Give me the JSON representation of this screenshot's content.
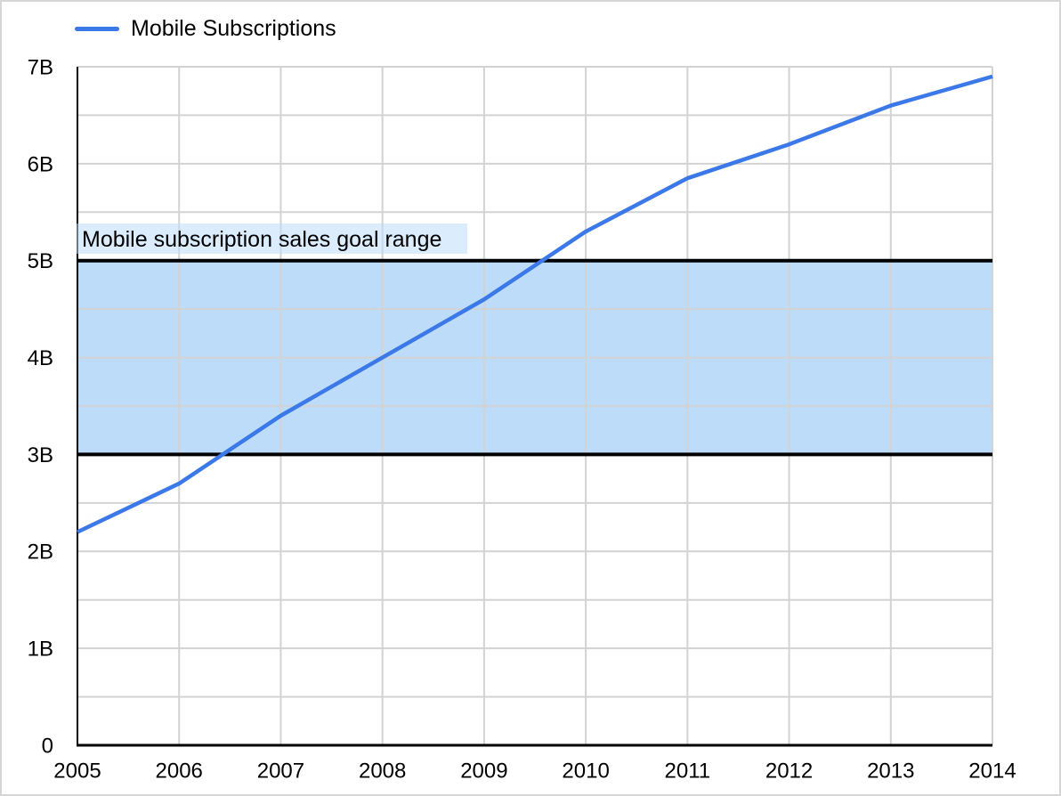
{
  "legend": {
    "label": "Mobile Subscriptions"
  },
  "colors": {
    "line": "#3B78E8",
    "band_fill": "#BDDCFA",
    "band_border": "#000000",
    "label_highlight_rgba": "rgba(189,220,250,0.55)",
    "gridline": "#D3D3D3",
    "axis": "#000000",
    "text": "#000000"
  },
  "chart_data": {
    "type": "line",
    "title": "",
    "xlabel": "",
    "ylabel": "",
    "categories": [
      "2005",
      "2006",
      "2007",
      "2008",
      "2009",
      "2010",
      "2011",
      "2012",
      "2013",
      "2014"
    ],
    "series": [
      {
        "name": "Mobile Subscriptions",
        "color": "#3B78E8",
        "values": [
          2.2,
          2.7,
          3.4,
          4.0,
          4.6,
          5.3,
          5.85,
          6.2,
          6.6,
          6.9
        ]
      }
    ],
    "unit": "billions",
    "ylim": [
      0,
      7
    ],
    "y_tick_labels": [
      "0",
      "1B",
      "2B",
      "3B",
      "4B",
      "5B",
      "6B",
      "7B"
    ],
    "gridline_step": 0.5,
    "grid": "on",
    "legend_position": "top-left",
    "annotation": {
      "label": "Mobile subscription sales goal range",
      "band_min": 3,
      "band_max": 5
    }
  }
}
